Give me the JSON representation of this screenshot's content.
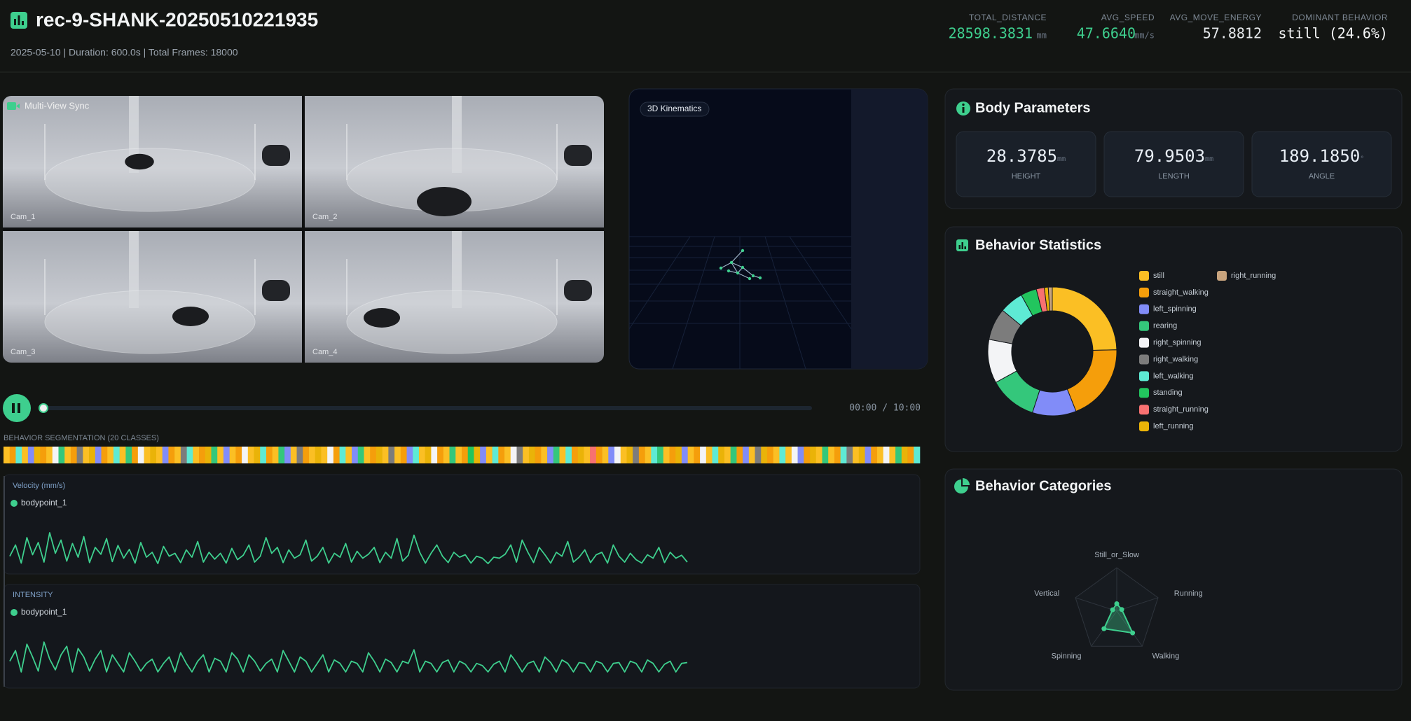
{
  "header": {
    "title": "rec-9-SHANK-20250510221935",
    "subtitle": "2025-05-10 | Duration: 600.0s | Total Frames: 18000"
  },
  "metrics": [
    {
      "label": "TOTAL_DISTANCE",
      "value": "28598.3831",
      "unit": "mm"
    },
    {
      "label": "AVG_SPEED",
      "value": "47.6640",
      "unit": "mm/s"
    },
    {
      "label": "AVG_MOVE_ENERGY",
      "value": "57.8812"
    },
    {
      "label": "DOMINANT BEHAVIOR",
      "value": "still (24.6%)"
    }
  ],
  "video": {
    "title": "Multi-View Sync",
    "cameras": [
      "Cam_1",
      "Cam_2",
      "Cam_3",
      "Cam_4"
    ]
  },
  "kinematics": {
    "title": "3D Kinematics"
  },
  "player": {
    "time": "00:00 / 10:00"
  },
  "segmentation": {
    "title": "BEHAVIOR SEGMENTATION (20 CLASSES)",
    "values": [
      0,
      1,
      6,
      0,
      2,
      9,
      1,
      0,
      4,
      3,
      0,
      1,
      5,
      0,
      9,
      2,
      1,
      0,
      6,
      0,
      3,
      1,
      4,
      0,
      9,
      0,
      2,
      1,
      0,
      5,
      6,
      0,
      1,
      9,
      3,
      0,
      2,
      0,
      1,
      4,
      0,
      9,
      6,
      1,
      0,
      3,
      2,
      0,
      5,
      1,
      0,
      9,
      0,
      4,
      1,
      6,
      0,
      2,
      3,
      0,
      1,
      9,
      0,
      5,
      0,
      1,
      2,
      6,
      0,
      9,
      4,
      1,
      0,
      3,
      0,
      1,
      7,
      9,
      2,
      0,
      6,
      1,
      0,
      4,
      5,
      0,
      9,
      1,
      0,
      2,
      3,
      0,
      6,
      1,
      9,
      0,
      8,
      1,
      0,
      2,
      4,
      0,
      9,
      5,
      1,
      0,
      6,
      3,
      0,
      1,
      9,
      2,
      0,
      1,
      4,
      0,
      6,
      9,
      0,
      3,
      1,
      2,
      0,
      5,
      9,
      1,
      0,
      6,
      0,
      4,
      2,
      1,
      9,
      0,
      3,
      0,
      1,
      6,
      5,
      0,
      9,
      2,
      1,
      0,
      4,
      0,
      3,
      9,
      1,
      6
    ]
  },
  "body_parameters": {
    "title": "Body Parameters",
    "items": [
      {
        "value": "28.3785",
        "unit": "mm",
        "label": "HEIGHT"
      },
      {
        "value": "79.9503",
        "unit": "mm",
        "label": "LENGTH"
      },
      {
        "value": "189.1850",
        "unit": "°",
        "label": "ANGLE"
      }
    ]
  },
  "chart_data": [
    {
      "type": "line",
      "title": "Velocity (mm/s)",
      "ylim": [
        0,
        100
      ],
      "series": [
        {
          "name": "bodypoint_1",
          "color": "#3ecf8e",
          "values": [
            22,
            45,
            8,
            60,
            25,
            50,
            10,
            70,
            28,
            55,
            12,
            48,
            20,
            62,
            9,
            40,
            26,
            58,
            11,
            44,
            18,
            36,
            8,
            50,
            20,
            30,
            7,
            42,
            22,
            28,
            9,
            35,
            20,
            52,
            10,
            30,
            16,
            28,
            8,
            38,
            15,
            24,
            45,
            10,
            22,
            60,
            28,
            40,
            9,
            35,
            18,
            25,
            55,
            12,
            22,
            40,
            8,
            28,
            20,
            48,
            10,
            32,
            18,
            26,
            40,
            9,
            30,
            18,
            58,
            12,
            24,
            65,
            30,
            8,
            28,
            45,
            22,
            9,
            30,
            20,
            25,
            8,
            22,
            18,
            7,
            20,
            18,
            26,
            45,
            10,
            55,
            30,
            9,
            40,
            25,
            8,
            30,
            22,
            52,
            10,
            20,
            35,
            9,
            25,
            30,
            8,
            45,
            22,
            10,
            28,
            15,
            8,
            25,
            18,
            40,
            9,
            30,
            18,
            24,
            10
          ]
        }
      ]
    },
    {
      "type": "line",
      "title": "INTENSITY",
      "ylim": [
        0,
        1
      ],
      "series": [
        {
          "name": "bodypoint_1",
          "color": "#3ecf8e",
          "values": [
            0.35,
            0.6,
            0.1,
            0.75,
            0.45,
            0.12,
            0.8,
            0.4,
            0.15,
            0.5,
            0.7,
            0.1,
            0.65,
            0.45,
            0.12,
            0.4,
            0.6,
            0.1,
            0.5,
            0.3,
            0.1,
            0.55,
            0.35,
            0.12,
            0.3,
            0.4,
            0.1,
            0.3,
            0.45,
            0.1,
            0.55,
            0.3,
            0.1,
            0.35,
            0.5,
            0.1,
            0.42,
            0.35,
            0.1,
            0.55,
            0.4,
            0.1,
            0.5,
            0.35,
            0.12,
            0.3,
            0.4,
            0.1,
            0.6,
            0.35,
            0.1,
            0.45,
            0.35,
            0.1,
            0.3,
            0.5,
            0.1,
            0.38,
            0.3,
            0.1,
            0.35,
            0.3,
            0.1,
            0.55,
            0.35,
            0.1,
            0.4,
            0.32,
            0.1,
            0.35,
            0.3,
            0.62,
            0.1,
            0.35,
            0.3,
            0.1,
            0.32,
            0.38,
            0.1,
            0.35,
            0.28,
            0.1,
            0.3,
            0.25,
            0.1,
            0.28,
            0.35,
            0.1,
            0.5,
            0.32,
            0.1,
            0.3,
            0.35,
            0.1,
            0.45,
            0.32,
            0.1,
            0.38,
            0.3,
            0.1,
            0.32,
            0.3,
            0.1,
            0.35,
            0.3,
            0.1,
            0.3,
            0.32,
            0.1,
            0.35,
            0.3,
            0.1,
            0.38,
            0.3,
            0.1,
            0.28,
            0.35,
            0.1,
            0.3,
            0.32
          ]
        }
      ]
    },
    {
      "type": "pie",
      "title": "Behavior Statistics",
      "donut": true,
      "categories": [
        "still",
        "straight_walking",
        "left_spinning",
        "rearing",
        "right_spinning",
        "right_walking",
        "left_walking",
        "standing",
        "straight_running",
        "left_running",
        "right_running"
      ],
      "values": [
        24.6,
        19.4,
        11,
        12,
        11,
        8,
        6,
        4,
        2,
        1,
        1
      ],
      "colors": [
        "#fbbf24",
        "#f59e0b",
        "#818cf8",
        "#34c77b",
        "#f3f4f6",
        "#7c7c7c",
        "#5eead4",
        "#22c55e",
        "#f87171",
        "#eab308",
        "#c8a47e"
      ]
    },
    {
      "type": "radar",
      "title": "Behavior Categories",
      "rlim": [
        0,
        1
      ],
      "categories": [
        "Still_or_Slow",
        "Running",
        "Walking",
        "Spinning",
        "Vertical"
      ],
      "series": [
        {
          "color": "#3ecf8e",
          "values": [
            0.17,
            0.12,
            0.62,
            0.5,
            0.1
          ]
        }
      ]
    }
  ]
}
